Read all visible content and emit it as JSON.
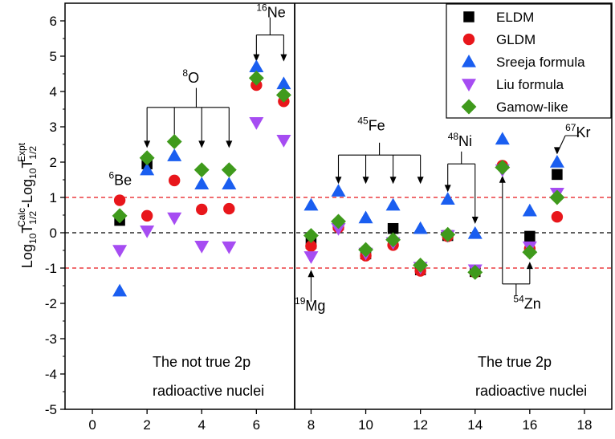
{
  "chart_data": {
    "type": "scatter",
    "xlim": [
      -1,
      19
    ],
    "ylim": [
      -5,
      6.5
    ],
    "xticks": [
      0,
      2,
      4,
      6,
      8,
      10,
      12,
      14,
      16,
      18
    ],
    "yticks": [
      -5,
      -4,
      -3,
      -2,
      -1,
      0,
      1,
      2,
      3,
      4,
      5,
      6
    ],
    "x_tick_labels": [
      "0",
      "2",
      "4",
      "6",
      "8",
      "10",
      "12",
      "14",
      "16",
      "18"
    ],
    "y_tick_labels": [
      "-5",
      "-4",
      "-3",
      "-2",
      "-1",
      "0",
      "1",
      "2",
      "3",
      "4",
      "5",
      "6"
    ],
    "reference_lines": [
      {
        "y": 1,
        "color": "#e8161b",
        "style": "dashed"
      },
      {
        "y": 0,
        "color": "#000000",
        "style": "dashed"
      },
      {
        "y": -1,
        "color": "#e8161b",
        "style": "dashed"
      }
    ],
    "divider_x": 7.4,
    "legend_position": "top-right",
    "ylabel": {
      "base": "Log",
      "sub1": "10",
      "t1": "T",
      "sub2": "1/2",
      "sup2": "Calc",
      "middle": "-Log",
      "sub3": "10",
      "t2": "T",
      "sub4": "1/2",
      "sup4": "Expt"
    },
    "series": [
      {
        "name": "ELDM",
        "marker": "square",
        "color": "#000000",
        "points": [
          [
            1,
            0.35
          ],
          [
            2,
            1.95
          ],
          [
            8,
            -0.3
          ],
          [
            9,
            0.22
          ],
          [
            10,
            -0.6
          ],
          [
            11,
            0.12
          ],
          [
            12,
            -1.05
          ],
          [
            13,
            -0.08
          ],
          [
            14,
            -1.1
          ],
          [
            16,
            -0.1
          ],
          [
            17,
            1.65
          ]
        ]
      },
      {
        "name": "GLDM",
        "marker": "circle",
        "color": "#e8161b",
        "points": [
          [
            1,
            0.92
          ],
          [
            2,
            0.48
          ],
          [
            3,
            1.48
          ],
          [
            4,
            0.66
          ],
          [
            5,
            0.68
          ],
          [
            6,
            4.18
          ],
          [
            7,
            3.72
          ],
          [
            8,
            -0.38
          ],
          [
            9,
            0.15
          ],
          [
            10,
            -0.65
          ],
          [
            11,
            -0.35
          ],
          [
            12,
            -1.08
          ],
          [
            13,
            -0.1
          ],
          [
            14,
            -1.12
          ],
          [
            15,
            1.9
          ],
          [
            16,
            -0.45
          ],
          [
            17,
            0.45
          ]
        ]
      },
      {
        "name": "Sreeja formula",
        "marker": "triangle-up",
        "color": "#1a5ef0",
        "points": [
          [
            1,
            -1.65
          ],
          [
            2,
            1.78
          ],
          [
            3,
            2.18
          ],
          [
            4,
            1.38
          ],
          [
            5,
            1.38
          ],
          [
            6,
            4.7
          ],
          [
            7,
            4.22
          ],
          [
            8,
            0.78
          ],
          [
            9,
            1.18
          ],
          [
            10,
            0.42
          ],
          [
            11,
            0.78
          ],
          [
            12,
            0.12
          ],
          [
            13,
            0.95
          ],
          [
            14,
            -0.02
          ],
          [
            15,
            2.65
          ],
          [
            16,
            0.62
          ],
          [
            17,
            2.0
          ]
        ]
      },
      {
        "name": "Liu formula",
        "marker": "triangle-down",
        "color": "#a64cf2",
        "points": [
          [
            1,
            -0.5
          ],
          [
            2,
            0.05
          ],
          [
            3,
            0.42
          ],
          [
            4,
            -0.38
          ],
          [
            5,
            -0.4
          ],
          [
            6,
            3.12
          ],
          [
            7,
            2.62
          ],
          [
            8,
            -0.68
          ],
          [
            9,
            0.12
          ],
          [
            10,
            -0.58
          ],
          [
            11,
            -0.28
          ],
          [
            12,
            -0.98
          ],
          [
            13,
            -0.08
          ],
          [
            14,
            -1.05
          ],
          [
            15,
            1.78
          ],
          [
            16,
            -0.4
          ],
          [
            17,
            1.12
          ]
        ]
      },
      {
        "name": "Gamow-like",
        "marker": "diamond",
        "color": "#3f9a1c",
        "points": [
          [
            1,
            0.48
          ],
          [
            2,
            2.12
          ],
          [
            3,
            2.58
          ],
          [
            4,
            1.78
          ],
          [
            5,
            1.78
          ],
          [
            6,
            4.38
          ],
          [
            7,
            3.9
          ],
          [
            8,
            -0.08
          ],
          [
            9,
            0.32
          ],
          [
            10,
            -0.48
          ],
          [
            11,
            -0.2
          ],
          [
            12,
            -0.92
          ],
          [
            13,
            -0.05
          ],
          [
            14,
            -1.12
          ],
          [
            15,
            1.85
          ],
          [
            16,
            -0.55
          ],
          [
            17,
            1.0
          ]
        ]
      }
    ],
    "nuclei_labels": [
      {
        "mass": "6",
        "symbol": "Be"
      },
      {
        "mass": "8",
        "symbol": "O"
      },
      {
        "mass": "16",
        "symbol": "Ne"
      },
      {
        "mass": "45",
        "symbol": "Fe"
      },
      {
        "mass": "48",
        "symbol": "Ni"
      },
      {
        "mass": "67",
        "symbol": "Kr"
      },
      {
        "mass": "19",
        "symbol": "Mg"
      },
      {
        "mass": "54",
        "symbol": "Zn"
      }
    ],
    "regions": {
      "left_line1": "The not true 2p",
      "left_line2": "radioactive nuclei",
      "right_line1": "The true 2p",
      "right_line2": "radioactive nuclei"
    }
  }
}
